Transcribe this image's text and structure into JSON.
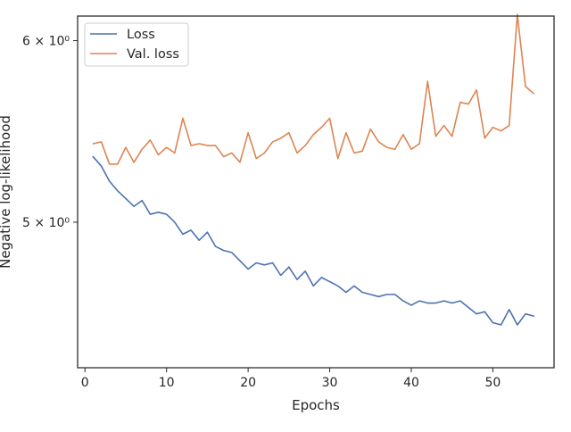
{
  "chart_data": {
    "type": "line",
    "title": "",
    "xlabel": "Epochs",
    "ylabel": "Negative log-likelihood",
    "yscale": "log",
    "xlim": [
      -0.9,
      57.5
    ],
    "ylim": [
      4.32,
      6.15
    ],
    "xticks": [
      0,
      10,
      20,
      30,
      40,
      50
    ],
    "yticks": [
      {
        "value": 5,
        "label": "5 × 10⁰"
      },
      {
        "value": 6,
        "label": "6 × 10⁰"
      }
    ],
    "grid": false,
    "legend": "top-left",
    "x": [
      1,
      2,
      3,
      4,
      5,
      6,
      7,
      8,
      9,
      10,
      11,
      12,
      13,
      14,
      15,
      16,
      17,
      18,
      19,
      20,
      21,
      22,
      23,
      24,
      25,
      26,
      27,
      28,
      29,
      30,
      31,
      32,
      33,
      34,
      35,
      36,
      37,
      38,
      39,
      40,
      41,
      42,
      43,
      44,
      45,
      46,
      47,
      48,
      49,
      50,
      51,
      52,
      53,
      54,
      55
    ],
    "series": [
      {
        "name": "Loss",
        "color": "#4c72b0",
        "values": [
          5.34,
          5.29,
          5.21,
          5.16,
          5.12,
          5.08,
          5.11,
          5.04,
          5.05,
          5.04,
          5.0,
          4.94,
          4.96,
          4.91,
          4.95,
          4.88,
          4.86,
          4.85,
          4.81,
          4.77,
          4.8,
          4.79,
          4.8,
          4.74,
          4.78,
          4.72,
          4.76,
          4.69,
          4.73,
          4.71,
          4.69,
          4.66,
          4.69,
          4.66,
          4.65,
          4.64,
          4.65,
          4.65,
          4.62,
          4.6,
          4.62,
          4.61,
          4.61,
          4.62,
          4.61,
          4.62,
          4.59,
          4.56,
          4.57,
          4.52,
          4.51,
          4.58,
          4.51,
          4.56,
          4.55
        ]
      },
      {
        "name": "Val. loss",
        "color": "#dd8452",
        "values": [
          5.41,
          5.42,
          5.3,
          5.3,
          5.39,
          5.31,
          5.38,
          5.43,
          5.35,
          5.39,
          5.36,
          5.55,
          5.4,
          5.41,
          5.4,
          5.4,
          5.34,
          5.36,
          5.31,
          5.47,
          5.33,
          5.36,
          5.42,
          5.44,
          5.47,
          5.36,
          5.4,
          5.46,
          5.5,
          5.55,
          5.33,
          5.47,
          5.36,
          5.37,
          5.49,
          5.42,
          5.39,
          5.38,
          5.46,
          5.38,
          5.41,
          5.76,
          5.45,
          5.51,
          5.45,
          5.64,
          5.63,
          5.71,
          5.44,
          5.5,
          5.48,
          5.51,
          6.16,
          5.73,
          5.69
        ]
      }
    ]
  }
}
